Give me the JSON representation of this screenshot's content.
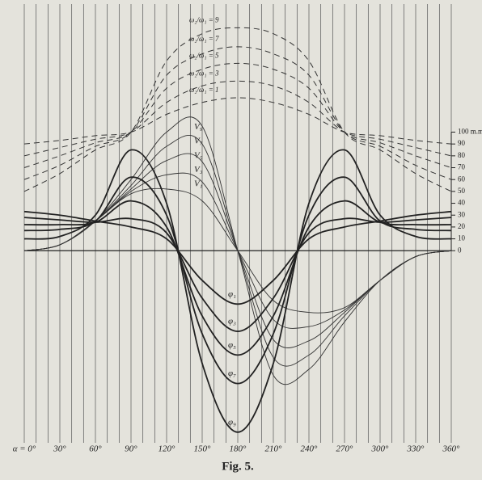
{
  "chart_data": {
    "type": "line",
    "caption": "Fig. 5.",
    "x": [
      0,
      30,
      60,
      90,
      120,
      150,
      180,
      210,
      240,
      270,
      300,
      330,
      360
    ],
    "xlim": [
      0,
      360
    ],
    "xticks": [
      {
        "value": 0,
        "label": "α = 0°"
      },
      {
        "value": 30,
        "label": "30°"
      },
      {
        "value": 60,
        "label": "60°"
      },
      {
        "value": 90,
        "label": "90°"
      },
      {
        "value": 120,
        "label": "120°"
      },
      {
        "value": 150,
        "label": "150°"
      },
      {
        "value": 180,
        "label": "180°"
      },
      {
        "value": 210,
        "label": "210°"
      },
      {
        "value": 240,
        "label": "240°"
      },
      {
        "value": 270,
        "label": "270°"
      },
      {
        "value": 300,
        "label": "300°"
      },
      {
        "value": 330,
        "label": "330°"
      },
      {
        "value": 360,
        "label": "360°"
      }
    ],
    "xgrid": [
      0,
      10,
      20,
      30,
      40,
      50,
      60,
      70,
      80,
      90,
      100,
      110,
      120,
      130,
      140,
      150,
      160,
      170,
      180,
      190,
      200,
      210,
      220,
      230,
      240,
      250,
      260,
      270,
      280,
      290,
      300,
      310,
      320,
      330,
      340,
      350,
      360
    ],
    "ylim": [
      -162,
      208
    ],
    "yticks": [
      0,
      10,
      20,
      30,
      40,
      50,
      60,
      70,
      80,
      90,
      {
        "value": 100,
        "label": "100 m.m"
      }
    ],
    "series": [
      {
        "name": "ω₂/ω₁ = 9",
        "color": "#333333",
        "style": "dash",
        "values": [
          50,
          65,
          85,
          100,
          160,
          183,
          188,
          183,
          160,
          100,
          85,
          65,
          50
        ]
      },
      {
        "name": "ω₂/ω₁ = 7",
        "color": "#333333",
        "style": "dash",
        "values": [
          60,
          72,
          88,
          100,
          148,
          166,
          172,
          166,
          148,
          100,
          88,
          72,
          60
        ]
      },
      {
        "name": "ω₂/ω₁ = 5",
        "color": "#333333",
        "style": "dash",
        "values": [
          70,
          80,
          91,
          100,
          137,
          153,
          158,
          153,
          137,
          100,
          91,
          80,
          70
        ]
      },
      {
        "name": "ω₂/ω₁ = 3",
        "color": "#333333",
        "style": "dash",
        "values": [
          80,
          87,
          94,
          100,
          125,
          139,
          143,
          139,
          125,
          100,
          94,
          87,
          80
        ]
      },
      {
        "name": "ω₂/ω₁ = 1",
        "color": "#333333",
        "style": "dash",
        "values": [
          90,
          93,
          97,
          100,
          115,
          125,
          129,
          125,
          115,
          100,
          97,
          93,
          90
        ]
      },
      {
        "name": "V₉",
        "color": "#333333",
        "style": "thin",
        "values": [
          0,
          5,
          25,
          60,
          100,
          105,
          0,
          -105,
          -100,
          -60,
          -25,
          -5,
          0
        ]
      },
      {
        "name": "V₇",
        "color": "#333333",
        "style": "thin",
        "values": [
          0,
          5,
          25,
          55,
          88,
          90,
          0,
          -90,
          -88,
          -55,
          -25,
          -5,
          0
        ]
      },
      {
        "name": "V₅",
        "color": "#333333",
        "style": "thin",
        "values": [
          0,
          5,
          25,
          52,
          76,
          75,
          0,
          -75,
          -76,
          -52,
          -25,
          -5,
          0
        ]
      },
      {
        "name": "V₃",
        "color": "#333333",
        "style": "thin",
        "values": [
          0,
          5,
          25,
          50,
          64,
          58,
          0,
          -58,
          -64,
          -50,
          -25,
          -5,
          0
        ]
      },
      {
        "name": "V₁",
        "color": "#333333",
        "style": "thin",
        "values": [
          0,
          5,
          25,
          48,
          52,
          42,
          0,
          -42,
          -52,
          -48,
          -25,
          -5,
          0
        ]
      },
      {
        "name": "φ₁",
        "color": "#222222",
        "style": "thick",
        "values": [
          33,
          30,
          25,
          20,
          10,
          -25,
          -45,
          -25,
          10,
          20,
          25,
          30,
          33
        ]
      },
      {
        "name": "φ₃",
        "color": "#222222",
        "style": "thick",
        "values": [
          28,
          26,
          24,
          27,
          15,
          -40,
          -68,
          -40,
          15,
          27,
          24,
          26,
          28
        ]
      },
      {
        "name": "φ₅",
        "color": "#222222",
        "style": "thick",
        "values": [
          22,
          22,
          24,
          42,
          20,
          -55,
          -88,
          -55,
          20,
          42,
          24,
          22,
          22
        ]
      },
      {
        "name": "φ₇",
        "color": "#222222",
        "style": "thick",
        "values": [
          17,
          18,
          25,
          62,
          30,
          -70,
          -112,
          -70,
          30,
          62,
          25,
          18,
          17
        ]
      },
      {
        "name": "φ₉",
        "color": "#222222",
        "style": "thick",
        "values": [
          10,
          12,
          30,
          85,
          40,
          -95,
          -153,
          -95,
          40,
          85,
          30,
          12,
          10
        ]
      }
    ]
  }
}
